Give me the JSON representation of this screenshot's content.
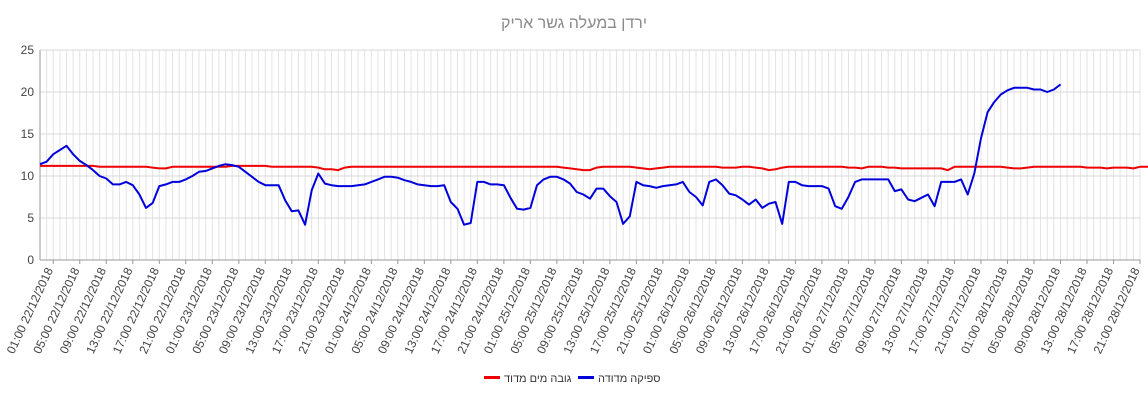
{
  "chart_data": {
    "type": "line",
    "title": "ירדן במעלה גשר אריק",
    "xlabel": "",
    "ylabel": "",
    "ylim": [
      0,
      25
    ],
    "yticks": [
      0,
      5,
      10,
      15,
      20,
      25
    ],
    "grid": true,
    "legend_position": "bottom",
    "x_tick_labels": [
      "01:00 22/12/2018",
      "05:00 22/12/2018",
      "09:00 22/12/2018",
      "13:00 22/12/2018",
      "17:00 22/12/2018",
      "21:00 22/12/2018",
      "01:00 23/12/2018",
      "05:00 23/12/2018",
      "09:00 23/12/2018",
      "13:00 23/12/2018",
      "17:00 23/12/2018",
      "21:00 23/12/2018",
      "01:00 24/12/2018",
      "05:00 24/12/2018",
      "09:00 24/12/2018",
      "13:00 24/12/2018",
      "17:00 24/12/2018",
      "21:00 24/12/2018",
      "01:00 25/12/2018",
      "05:00 25/12/2018",
      "09:00 25/12/2018",
      "13:00 25/12/2018",
      "17:00 25/12/2018",
      "21:00 25/12/2018",
      "01:00 26/12/2018",
      "05:00 26/12/2018",
      "09:00 26/12/2018",
      "13:00 26/12/2018",
      "17:00 26/12/2018",
      "21:00 26/12/2018",
      "01:00 27/12/2018",
      "05:00 27/12/2018",
      "09:00 27/12/2018",
      "13:00 27/12/2018",
      "17:00 27/12/2018",
      "21:00 27/12/2018",
      "01:00 28/12/2018",
      "05:00 28/12/2018",
      "09:00 28/12/2018",
      "13:00 28/12/2018",
      "17:00 28/12/2018",
      "21:00 28/12/2018"
    ],
    "series": [
      {
        "name": "גובה מים מדוד",
        "color": "#ee0000",
        "values": [
          11.2,
          11.2,
          11.2,
          11.2,
          11.2,
          11.2,
          11.2,
          11.2,
          11.2,
          11.1,
          11.1,
          11.1,
          11.1,
          11.1,
          11.1,
          11.1,
          11.1,
          11.0,
          10.9,
          10.9,
          11.1,
          11.1,
          11.1,
          11.1,
          11.1,
          11.1,
          11.1,
          11.1,
          11.1,
          11.2,
          11.2,
          11.2,
          11.2,
          11.2,
          11.2,
          11.1,
          11.1,
          11.1,
          11.1,
          11.1,
          11.1,
          11.1,
          11.0,
          10.8,
          10.8,
          10.7,
          11.0,
          11.1,
          11.1,
          11.1,
          11.1,
          11.1,
          11.1,
          11.1,
          11.1,
          11.1,
          11.1,
          11.1,
          11.1,
          11.1,
          11.1,
          11.1,
          11.1,
          11.1,
          11.1,
          11.1,
          11.1,
          11.1,
          11.1,
          11.1,
          11.1,
          11.1,
          11.1,
          11.1,
          11.1,
          11.1,
          11.1,
          11.1,
          11.1,
          11.0,
          10.9,
          10.8,
          10.7,
          10.7,
          11.0,
          11.1,
          11.1,
          11.1,
          11.1,
          11.1,
          11.0,
          10.9,
          10.8,
          10.9,
          11.0,
          11.1,
          11.1,
          11.1,
          11.1,
          11.1,
          11.1,
          11.1,
          11.1,
          11.0,
          11.0,
          11.0,
          11.1,
          11.1,
          11.0,
          10.9,
          10.7,
          10.8,
          11.0,
          11.1,
          11.1,
          11.1,
          11.1,
          11.1,
          11.1,
          11.1,
          11.1,
          11.1,
          11.0,
          11.0,
          10.9,
          11.1,
          11.1,
          11.1,
          11.0,
          11.0,
          10.9,
          10.9,
          10.9,
          10.9,
          10.9,
          10.9,
          10.9,
          10.7,
          11.1,
          11.1,
          11.1,
          11.1,
          11.1,
          11.1,
          11.1,
          11.1,
          11.0,
          10.9,
          10.9,
          11.0,
          11.1,
          11.1,
          11.1,
          11.1,
          11.1,
          11.1,
          11.1,
          11.1,
          11.0,
          11.0,
          11.0,
          10.9,
          11.0,
          11.0,
          11.0,
          10.9,
          11.1,
          11.1,
          11.1,
          11.1,
          11.1,
          11.0,
          11.0,
          11.1,
          11.2,
          11.3,
          11.4,
          11.4,
          11.4,
          11.4,
          11.4,
          11.4,
          11.4,
          11.4,
          11.4,
          11.4,
          11.4,
          11.4,
          11.4,
          11.4
        ]
      },
      {
        "name": "ספיקה מדודה",
        "color": "#0000dd",
        "values": [
          11.4,
          11.7,
          12.6,
          13.1,
          13.6,
          12.6,
          11.8,
          11.3,
          10.7,
          10.0,
          9.7,
          9.0,
          9.0,
          9.3,
          8.9,
          7.8,
          6.2,
          6.8,
          8.8,
          9.0,
          9.3,
          9.3,
          9.6,
          10.0,
          10.5,
          10.6,
          10.9,
          11.2,
          11.4,
          11.3,
          11.1,
          10.5,
          9.9,
          9.3,
          8.9,
          8.9,
          8.9,
          7.1,
          5.8,
          5.9,
          4.2,
          8.3,
          10.3,
          9.1,
          8.9,
          8.8,
          8.8,
          8.8,
          8.9,
          9.0,
          9.3,
          9.6,
          9.9,
          9.9,
          9.8,
          9.5,
          9.3,
          9.0,
          8.9,
          8.8,
          8.8,
          8.9,
          6.9,
          6.1,
          4.2,
          4.4,
          9.3,
          9.3,
          9.0,
          9.0,
          8.9,
          7.4,
          6.1,
          6.0,
          6.2,
          8.9,
          9.6,
          9.9,
          9.9,
          9.6,
          9.1,
          8.1,
          7.8,
          7.3,
          8.5,
          8.5,
          7.6,
          6.9,
          4.3,
          5.2,
          9.3,
          8.9,
          8.8,
          8.6,
          8.8,
          8.9,
          9.0,
          9.3,
          8.1,
          7.5,
          6.5,
          9.3,
          9.6,
          8.9,
          7.9,
          7.7,
          7.2,
          6.6,
          7.2,
          6.2,
          6.7,
          6.9,
          4.3,
          9.3,
          9.3,
          8.9,
          8.8,
          8.8,
          8.8,
          8.5,
          6.4,
          6.1,
          7.5,
          9.3,
          9.6,
          9.6,
          9.6,
          9.6,
          9.6,
          8.2,
          8.4,
          7.2,
          7.0,
          7.4,
          7.8,
          6.4,
          9.3,
          9.3,
          9.3,
          9.6,
          7.8,
          10.3,
          14.5,
          17.6,
          18.8,
          19.7,
          20.2,
          20.5,
          20.5,
          20.5,
          20.3,
          20.3,
          20.0,
          20.3,
          20.9
        ]
      }
    ]
  }
}
